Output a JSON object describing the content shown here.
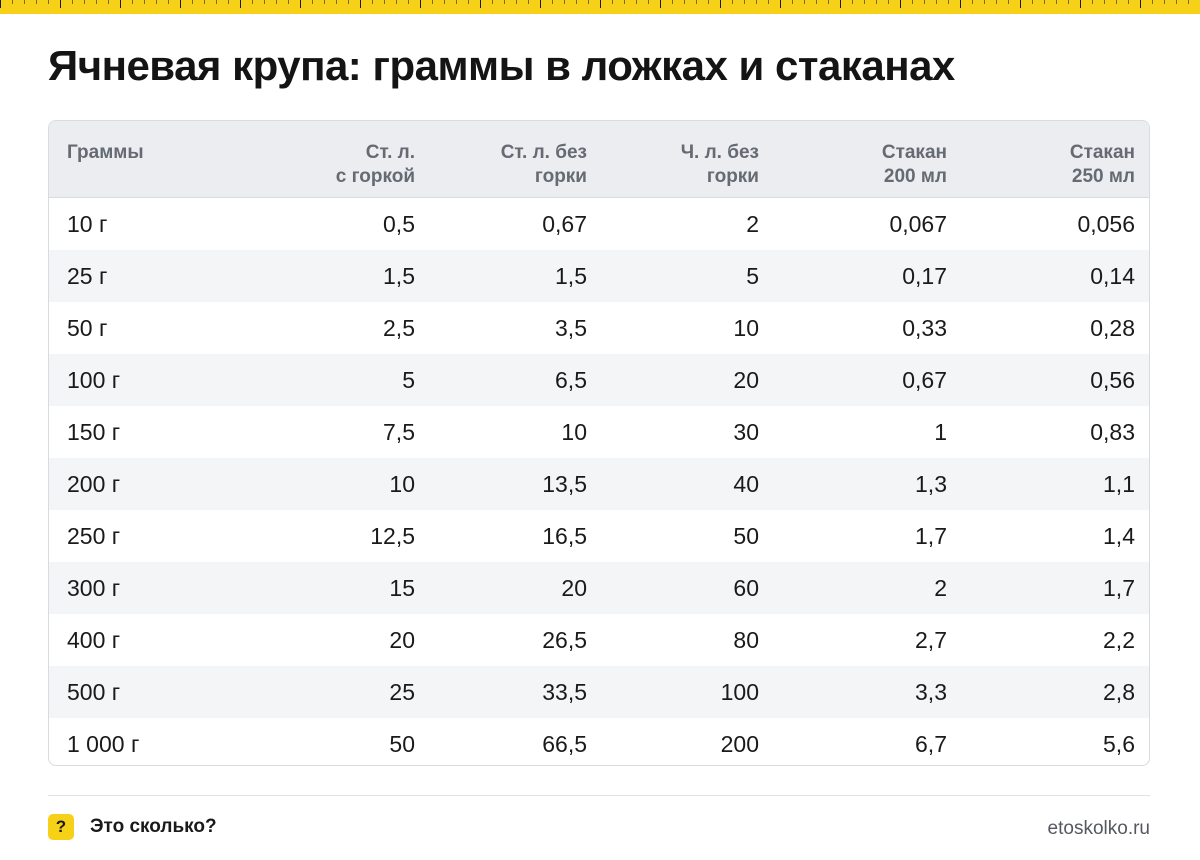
{
  "title": "Ячневая крупа: граммы в ложках и стаканах",
  "table": {
    "headers": [
      "Граммы",
      "Ст. л.\nс горкой",
      "Ст. л. без\nгорки",
      "Ч. л. без\nгорки",
      "Стакан\n200 мл",
      "Стакан\n250 мл"
    ],
    "rows": [
      [
        "10 г",
        "0,5",
        "0,67",
        "2",
        "0,067",
        "0,056"
      ],
      [
        "25 г",
        "1,5",
        "1,5",
        "5",
        "0,17",
        "0,14"
      ],
      [
        "50 г",
        "2,5",
        "3,5",
        "10",
        "0,33",
        "0,28"
      ],
      [
        "100 г",
        "5",
        "6,5",
        "20",
        "0,67",
        "0,56"
      ],
      [
        "150 г",
        "7,5",
        "10",
        "30",
        "1",
        "0,83"
      ],
      [
        "200 г",
        "10",
        "13,5",
        "40",
        "1,3",
        "1,1"
      ],
      [
        "250 г",
        "12,5",
        "16,5",
        "50",
        "1,7",
        "1,4"
      ],
      [
        "300 г",
        "15",
        "20",
        "60",
        "2",
        "1,7"
      ],
      [
        "400 г",
        "20",
        "26,5",
        "80",
        "2,7",
        "2,2"
      ],
      [
        "500 г",
        "25",
        "33,5",
        "100",
        "3,3",
        "2,8"
      ],
      [
        "1 000 г",
        "50",
        "66,5",
        "200",
        "6,7",
        "5,6"
      ]
    ]
  },
  "footer": {
    "badge": "?",
    "brand": "Это сколько?",
    "site": "etoskolko.ru"
  },
  "colors": {
    "accent": "#f7d117",
    "header_bg": "#ebedf1",
    "stripe_bg": "#f4f5f7",
    "border": "#d9dbe0"
  }
}
